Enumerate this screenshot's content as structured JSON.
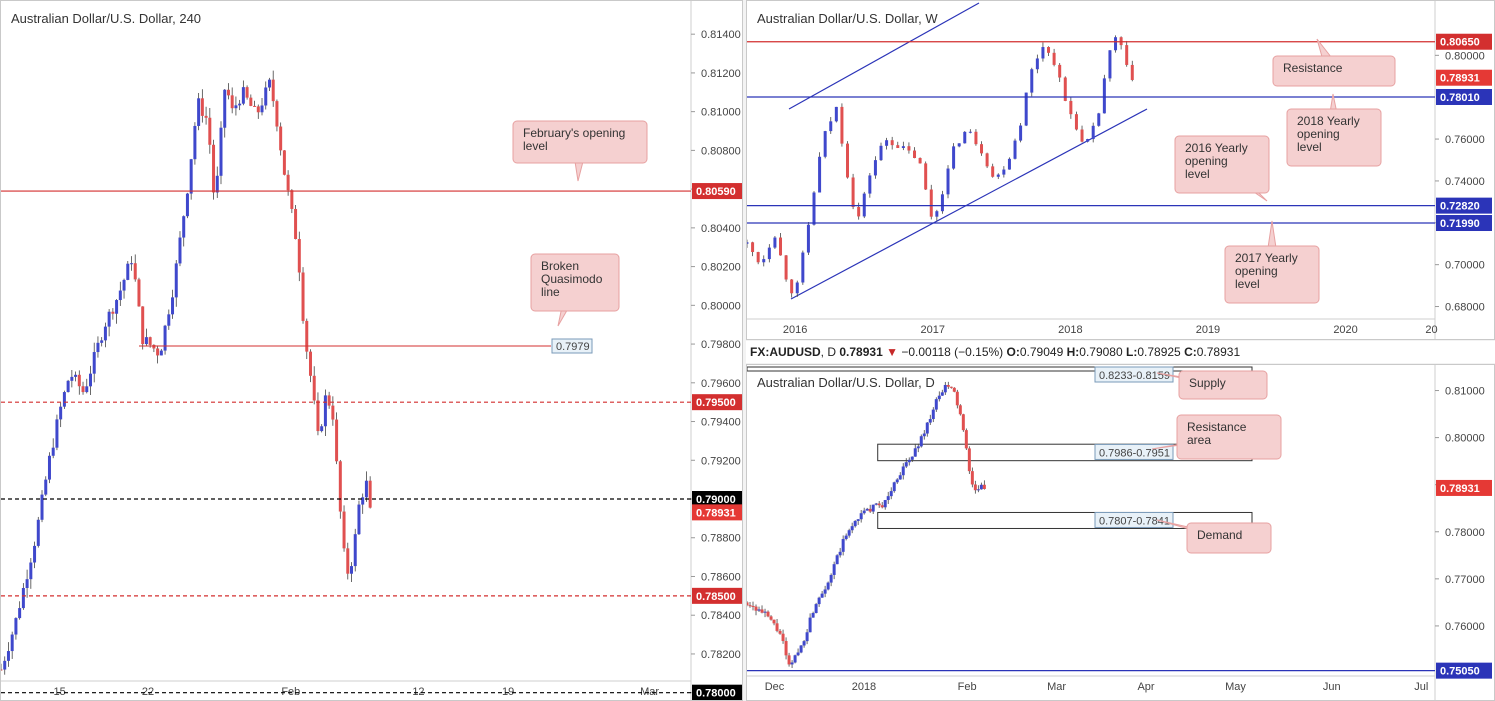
{
  "header": {
    "symbol": "FX:AUDUSD",
    "interval": "D",
    "last": "0.78931",
    "change": "−0.00118 (−0.15%)",
    "o_label": "O:",
    "o": "0.79049",
    "h_label": "H:",
    "h": "0.79080",
    "l_label": "L:",
    "l": "0.78925",
    "c_label": "C:",
    "c": "0.78931"
  },
  "colors": {
    "up": "#3f48cc",
    "down": "#e05050",
    "red_line": "#d32f2f",
    "blue_line": "#2b34b8",
    "black_line": "#000000",
    "callout_bg": "#f5d0d0",
    "callout_border": "#e7a1a1"
  },
  "chart_data": [
    {
      "type": "candlestick",
      "title": "Australian Dollar/U.S. Dollar, 240",
      "ylim": [
        0.7805,
        0.8153
      ],
      "y_ticks": [
        "0.81400",
        "0.81200",
        "0.81000",
        "0.80800",
        "0.80600",
        "0.80400",
        "0.80200",
        "0.80000",
        "0.79800",
        "0.79600",
        "0.79400",
        "0.79200",
        "0.79000",
        "0.78800",
        "0.78600",
        "0.78400",
        "0.78200",
        "0.78000"
      ],
      "y_tick_values": [
        0.814,
        0.812,
        0.81,
        0.808,
        0.806,
        0.804,
        0.802,
        0.8,
        0.798,
        0.796,
        0.794,
        0.792,
        0.79,
        0.788,
        0.786,
        0.784,
        0.782,
        0.78
      ],
      "x_ticks": [
        "15",
        "22",
        "Feb",
        "12",
        "19",
        "Mar"
      ],
      "x_tick_pos": [
        0.085,
        0.213,
        0.42,
        0.605,
        0.735,
        0.94
      ],
      "price_path": [
        [
          0,
          0.7812
        ],
        [
          0.02,
          0.7835
        ],
        [
          0.05,
          0.788
        ],
        [
          0.07,
          0.792
        ],
        [
          0.085,
          0.7945
        ],
        [
          0.1,
          0.7965
        ],
        [
          0.12,
          0.7955
        ],
        [
          0.15,
          0.799
        ],
        [
          0.17,
          0.8005
        ],
        [
          0.19,
          0.8025
        ],
        [
          0.205,
          0.7983
        ],
        [
          0.215,
          0.798
        ],
        [
          0.23,
          0.7975
        ],
        [
          0.25,
          0.801
        ],
        [
          0.27,
          0.806
        ],
        [
          0.285,
          0.8105
        ],
        [
          0.3,
          0.8095
        ],
        [
          0.31,
          0.805
        ],
        [
          0.325,
          0.8115
        ],
        [
          0.335,
          0.81
        ],
        [
          0.35,
          0.811
        ],
        [
          0.37,
          0.8098
        ],
        [
          0.39,
          0.8115
        ],
        [
          0.4,
          0.8095
        ],
        [
          0.41,
          0.807
        ],
        [
          0.42,
          0.805
        ],
        [
          0.43,
          0.803
        ],
        [
          0.44,
          0.7985
        ],
        [
          0.45,
          0.796
        ],
        [
          0.46,
          0.793
        ],
        [
          0.47,
          0.7952
        ],
        [
          0.48,
          0.7948
        ],
        [
          0.49,
          0.79
        ],
        [
          0.5,
          0.786
        ],
        [
          0.51,
          0.787
        ],
        [
          0.52,
          0.79
        ],
        [
          0.53,
          0.7908
        ],
        [
          0.535,
          0.7893
        ]
      ],
      "levels": [
        {
          "value": 0.8059,
          "label": "0.80590",
          "style": "solid",
          "color": "#d32f2f"
        },
        {
          "value": 0.795,
          "label": "0.79500",
          "style": "dashed",
          "color": "#d32f2f"
        },
        {
          "value": 0.79,
          "label": "0.79000",
          "style": "dashed",
          "color": "#000000"
        },
        {
          "value": 0.785,
          "label": "0.78500",
          "style": "dashed",
          "color": "#d32f2f"
        },
        {
          "value": 0.78,
          "label": "0.78000",
          "style": "dashed",
          "color": "#000000"
        }
      ],
      "last_price": {
        "value": 0.78931,
        "label": "0.78931"
      },
      "qm_line": {
        "value": 0.7979,
        "label": "0.7979"
      },
      "annotations": [
        {
          "text": [
            "February's opening",
            "level"
          ]
        },
        {
          "text": [
            "Broken",
            "Quasimodo",
            "line"
          ]
        }
      ]
    },
    {
      "type": "candlestick",
      "title": "Australian Dollar/U.S. Dollar, W",
      "ylim": [
        0.675,
        0.825
      ],
      "y_ticks": [
        "0.80000",
        "0.76000",
        "0.74000",
        "0.72000",
        "0.70000",
        "0.68000"
      ],
      "y_tick_values": [
        0.8,
        0.76,
        0.74,
        0.72,
        0.7,
        0.68
      ],
      "x_ticks": [
        "2016",
        "2017",
        "2018",
        "2019",
        "2020",
        "20"
      ],
      "x_tick_pos": [
        0.07,
        0.27,
        0.47,
        0.67,
        0.87,
        0.995
      ],
      "price_path": [
        [
          0,
          0.71
        ],
        [
          0.02,
          0.7
        ],
        [
          0.04,
          0.715
        ],
        [
          0.06,
          0.69
        ],
        [
          0.07,
          0.685
        ],
        [
          0.09,
          0.72
        ],
        [
          0.11,
          0.76
        ],
        [
          0.13,
          0.775
        ],
        [
          0.15,
          0.735
        ],
        [
          0.16,
          0.72
        ],
        [
          0.18,
          0.745
        ],
        [
          0.2,
          0.76
        ],
        [
          0.23,
          0.755
        ],
        [
          0.25,
          0.75
        ],
        [
          0.26,
          0.735
        ],
        [
          0.27,
          0.72
        ],
        [
          0.28,
          0.73
        ],
        [
          0.3,
          0.755
        ],
        [
          0.32,
          0.765
        ],
        [
          0.34,
          0.755
        ],
        [
          0.36,
          0.74
        ],
        [
          0.38,
          0.75
        ],
        [
          0.4,
          0.77
        ],
        [
          0.41,
          0.79
        ],
        [
          0.43,
          0.805
        ],
        [
          0.45,
          0.795
        ],
        [
          0.46,
          0.78
        ],
        [
          0.48,
          0.765
        ],
        [
          0.49,
          0.755
        ],
        [
          0.51,
          0.77
        ],
        [
          0.52,
          0.79
        ],
        [
          0.53,
          0.805
        ],
        [
          0.54,
          0.81
        ],
        [
          0.55,
          0.795
        ],
        [
          0.56,
          0.7893
        ]
      ],
      "levels": [
        {
          "value": 0.8065,
          "label": "0.80650",
          "style": "solid",
          "color": "#d32f2f"
        },
        {
          "value": 0.7801,
          "label": "0.78010",
          "style": "solid",
          "color": "#2b34b8"
        },
        {
          "value": 0.7282,
          "label": "0.72820",
          "style": "solid",
          "color": "#2b34b8"
        },
        {
          "value": 0.7199,
          "label": "0.71990",
          "style": "solid",
          "color": "#2b34b8"
        }
      ],
      "last_price": {
        "value": 0.78931,
        "label": "0.78931"
      },
      "annotations": [
        {
          "text": [
            "Resistance"
          ]
        },
        {
          "text": [
            "2018 Yearly",
            "opening",
            "level"
          ]
        },
        {
          "text": [
            "2016 Yearly",
            "opening",
            "level"
          ]
        },
        {
          "text": [
            "2017 Yearly",
            "opening",
            "level"
          ]
        }
      ]
    },
    {
      "type": "candlestick",
      "title": "Australian Dollar/U.S. Dollar, D",
      "ylim": [
        0.75,
        0.815
      ],
      "y_ticks": [
        "0.81000",
        "0.80000",
        "0.79000",
        "0.78000",
        "0.77000",
        "0.76000"
      ],
      "y_tick_values": [
        0.81,
        0.8,
        0.79,
        0.78,
        0.77,
        0.76
      ],
      "x_ticks": [
        "Dec",
        "2018",
        "Feb",
        "Mar",
        "Apr",
        "May",
        "Jun",
        "Jul"
      ],
      "x_tick_pos": [
        0.04,
        0.17,
        0.32,
        0.45,
        0.58,
        0.71,
        0.85,
        0.98
      ],
      "price_path": [
        [
          0,
          0.765
        ],
        [
          0.03,
          0.762
        ],
        [
          0.05,
          0.758
        ],
        [
          0.06,
          0.751
        ],
        [
          0.08,
          0.756
        ],
        [
          0.1,
          0.765
        ],
        [
          0.12,
          0.77
        ],
        [
          0.14,
          0.778
        ],
        [
          0.16,
          0.783
        ],
        [
          0.18,
          0.785
        ],
        [
          0.2,
          0.786
        ],
        [
          0.22,
          0.792
        ],
        [
          0.24,
          0.796
        ],
        [
          0.25,
          0.799
        ],
        [
          0.26,
          0.802
        ],
        [
          0.27,
          0.806
        ],
        [
          0.28,
          0.809
        ],
        [
          0.29,
          0.811
        ],
        [
          0.3,
          0.81
        ],
        [
          0.31,
          0.805
        ],
        [
          0.32,
          0.796
        ],
        [
          0.33,
          0.788
        ],
        [
          0.34,
          0.7895
        ],
        [
          0.345,
          0.7893
        ]
      ],
      "levels": [
        {
          "value": 0.7505,
          "label": "0.75050",
          "style": "solid",
          "color": "#2b34b8"
        }
      ],
      "last_price": {
        "value": 0.78931,
        "label": "0.78931"
      },
      "zones": [
        {
          "from": 0.8159,
          "to": 0.8233,
          "label": "0.8233-0.8159"
        },
        {
          "from": 0.7951,
          "to": 0.7986,
          "label": "0.7986-0.7951"
        },
        {
          "from": 0.7807,
          "to": 0.7841,
          "label": "0.7807-0.7841"
        }
      ],
      "annotations": [
        {
          "text": [
            "Supply"
          ]
        },
        {
          "text": [
            "Resistance",
            "area"
          ]
        },
        {
          "text": [
            "Demand"
          ]
        }
      ]
    }
  ]
}
